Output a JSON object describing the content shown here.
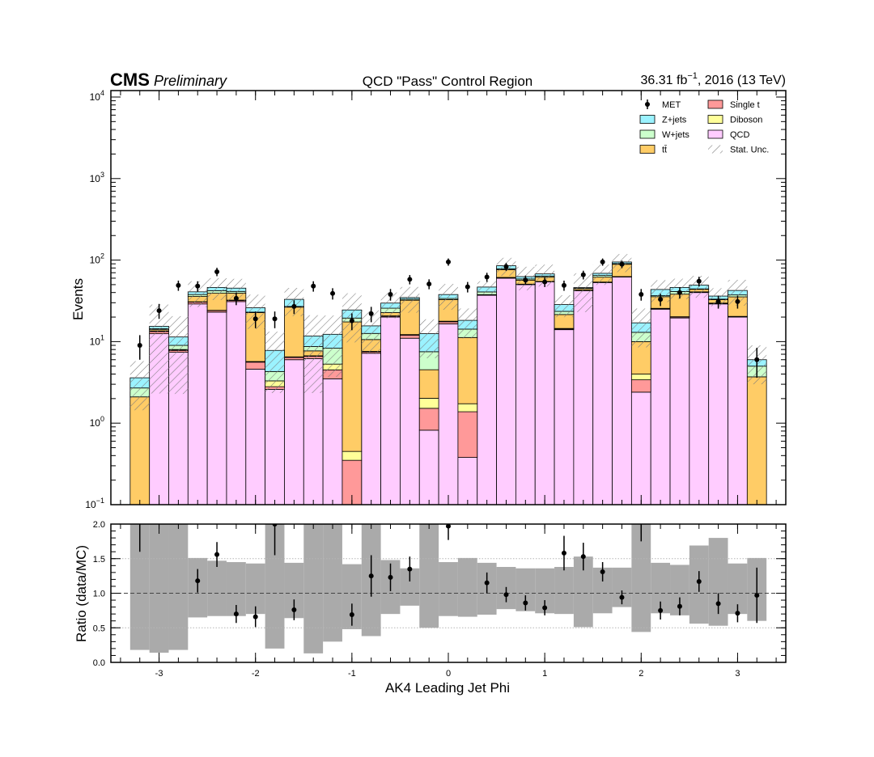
{
  "header": {
    "cms": "CMS",
    "preliminary": "Preliminary",
    "title": "QCD \"Pass\" Control Region",
    "lumi_value": "36.31 fb",
    "lumi_exp": "−1",
    "lumi_rest": ", 2016 (13 TeV)"
  },
  "chart_data": [
    {
      "type": "bar",
      "subtype": "stacked-histogram",
      "xlabel": "AK4 Leading Jet Phi",
      "ylabel": "Events",
      "yscale": "log",
      "xlim": [
        -3.5,
        3.5
      ],
      "ylim": [
        0.1,
        12000
      ],
      "bin_edges": [
        -3.3,
        -3.1,
        -2.9,
        -2.7,
        -2.5,
        -2.3,
        -2.1,
        -1.9,
        -1.7,
        -1.5,
        -1.3,
        -1.1,
        -0.9,
        -0.7,
        -0.5,
        -0.3,
        -0.1,
        0.1,
        0.3,
        0.5,
        0.7,
        0.9,
        1.1,
        1.3,
        1.5,
        1.7,
        1.9,
        2.1,
        2.3,
        2.5,
        2.7,
        2.9,
        3.1,
        3.3
      ],
      "x_ticks": [
        -3,
        -2,
        -1,
        0,
        1,
        2,
        3
      ],
      "x_tick_labels": [
        "-3",
        "-2",
        "-1",
        "0",
        "1",
        "2",
        "3"
      ],
      "y_ticks": [
        {
          "value": 0.1,
          "base": "10",
          "exp": "−1"
        },
        {
          "value": 1,
          "base": "10",
          "exp": "0"
        },
        {
          "value": 10,
          "base": "10",
          "exp": "1"
        },
        {
          "value": 100,
          "base": "10",
          "exp": "2"
        },
        {
          "value": 1000,
          "base": "10",
          "exp": "3"
        },
        {
          "value": 10000,
          "base": "10",
          "exp": "4"
        }
      ],
      "legend_position": "top-right",
      "legend": [
        {
          "label": "MET",
          "kind": "marker"
        },
        {
          "label": "Single t",
          "kind": "fill",
          "color": "#ff9999"
        },
        {
          "label": "Z+jets",
          "kind": "fill",
          "color": "#9bf2ff"
        },
        {
          "label": "Diboson",
          "kind": "fill",
          "color": "#ffff99"
        },
        {
          "label": "W+jets",
          "kind": "fill",
          "color": "#ccffcc"
        },
        {
          "label": "QCD",
          "kind": "fill",
          "color": "#ffccff"
        },
        {
          "label": "tt̄",
          "kind": "fill",
          "color": "#ffcc66"
        },
        {
          "label": "Stat. Unc.",
          "kind": "hatch"
        }
      ],
      "stack_order": [
        "QCD",
        "Single t",
        "Diboson",
        "tt̄",
        "W+jets",
        "Z+jets"
      ],
      "series": [
        {
          "name": "QCD",
          "color": "#ffccff",
          "values": [
            0,
            12.5,
            7.4,
            29,
            23,
            31,
            4.6,
            2.6,
            6,
            6.2,
            3.5,
            0,
            7.2,
            20,
            11,
            0.82,
            16.5,
            0.38,
            37,
            60,
            50,
            54,
            14,
            42,
            53,
            62,
            2.4,
            25,
            19.5,
            40,
            29,
            20,
            0
          ]
        },
        {
          "name": "Single t",
          "color": "#ff9999",
          "values": [
            0,
            0.8,
            0.4,
            1.5,
            1,
            1,
            1,
            0.2,
            0.4,
            0.4,
            1,
            0.35,
            0.3,
            0.5,
            1,
            0.7,
            1,
            1,
            0.5,
            1,
            0.5,
            0.5,
            0.3,
            0.5,
            0.5,
            0.5,
            1,
            0.3,
            0.5,
            0.5,
            0.5,
            0.3,
            0
          ]
        },
        {
          "name": "Diboson",
          "color": "#ffff99",
          "values": [
            0,
            0.2,
            0.1,
            0.3,
            0.2,
            0.3,
            0.1,
            0.5,
            0.1,
            0.1,
            0.8,
            0.1,
            0.1,
            0.2,
            0.2,
            0.5,
            0.3,
            0.35,
            0.2,
            0.3,
            0.2,
            0.2,
            0.2,
            0.2,
            0.3,
            0.3,
            0.6,
            0.3,
            0.2,
            0.3,
            0.2,
            0.1,
            0
          ]
        },
        {
          "name": "tt̄",
          "color": "#ffcc66",
          "values": [
            2.1,
            0.5,
            0.1,
            5,
            15,
            7,
            17,
            0,
            20,
            1,
            0,
            17,
            3,
            2,
            20,
            2.5,
            15,
            9.5,
            0,
            15,
            6,
            7,
            7,
            2,
            8,
            26,
            6,
            10,
            18,
            3,
            3,
            15,
            3.7
          ]
        },
        {
          "name": "W+jets",
          "color": "#ccffcc",
          "values": [
            0.6,
            0.4,
            1,
            2,
            3,
            2,
            0.3,
            1,
            0.5,
            1,
            3,
            2,
            2,
            3,
            1,
            3,
            1,
            3,
            3,
            2,
            2,
            2,
            2,
            0.3,
            3,
            2,
            3,
            1,
            3,
            0.5,
            0.5,
            2,
            1.3
          ]
        },
        {
          "name": "Z+jets",
          "color": "#9bf2ff",
          "values": [
            0.9,
            1,
            2.4,
            3,
            4,
            4,
            3,
            3.5,
            6,
            3,
            4,
            5,
            3,
            4,
            1.5,
            5,
            4,
            4,
            6,
            7,
            4,
            4,
            5,
            1,
            4,
            4,
            4,
            7,
            5,
            5,
            3,
            5,
            1
          ]
        }
      ],
      "stat_unc_rel": [
        0.6,
        0.85,
        0.8,
        0.35,
        0.3,
        0.3,
        0.45,
        0.7,
        0.38,
        0.8,
        0.7,
        0.6,
        0.55,
        0.35,
        0.35,
        0.5,
        0.35,
        0.4,
        0.18,
        0.25,
        0.32,
        0.3,
        0.3,
        0.5,
        0.28,
        0.25,
        0.5,
        0.3,
        0.28,
        0.3,
        0.25,
        0.35,
        0.5
      ],
      "data": {
        "name": "MET",
        "values": [
          9,
          24,
          49,
          48,
          72,
          34,
          19,
          19,
          27,
          48,
          39,
          18,
          22,
          38,
          58,
          51,
          95,
          47,
          62,
          83,
          57,
          54,
          49,
          66,
          95,
          89,
          38,
          33,
          40,
          55,
          31,
          31,
          6
        ],
        "errors": [
          3,
          5,
          7,
          7,
          8.5,
          6,
          4.4,
          4.4,
          5.2,
          7,
          6.2,
          4.2,
          4.7,
          6.2,
          7.6,
          7.1,
          9.7,
          6.9,
          7.9,
          9.1,
          7.5,
          7.3,
          7,
          8.1,
          9.7,
          9.4,
          6.2,
          5.7,
          6.3,
          7.4,
          5.6,
          5.6,
          2.4
        ]
      }
    },
    {
      "type": "scatter",
      "subtype": "ratio-panel",
      "xlabel": "AK4 Leading Jet Phi",
      "ylabel": "Ratio (data/MC)",
      "xlim": [
        -3.5,
        3.5
      ],
      "ylim": [
        0.0,
        2.0
      ],
      "y_ticks": [
        0.0,
        0.5,
        1.0,
        1.5,
        2.0
      ],
      "y_tick_labels": [
        "0.0",
        "0.5",
        "1.0",
        "1.5",
        "2.0"
      ],
      "x_ticks": [
        -3,
        -2,
        -1,
        0,
        1,
        2,
        3
      ],
      "x_tick_labels": [
        "-3",
        "-2",
        "-1",
        "0",
        "1",
        "2",
        "3"
      ],
      "reference_line": 1.0,
      "gridlines": [
        0.5,
        1.5
      ],
      "ratio": [
        2.35,
        2.6,
        2.8,
        1.18,
        1.56,
        0.7,
        0.66,
        2.0,
        0.76,
        2.6,
        2.6,
        0.69,
        1.25,
        1.23,
        1.35,
        3.0,
        1.97,
        2.6,
        1.15,
        0.98,
        0.86,
        0.79,
        1.58,
        1.53,
        1.31,
        0.94,
        2.1,
        0.75,
        0.81,
        1.17,
        0.85,
        0.71,
        0.97
      ],
      "ratio_err": [
        0.75,
        0.5,
        0.3,
        0.17,
        0.18,
        0.13,
        0.15,
        0.45,
        0.15,
        0.4,
        0.4,
        0.16,
        0.3,
        0.2,
        0.18,
        0.45,
        0.2,
        0.35,
        0.15,
        0.11,
        0.11,
        0.11,
        0.25,
        0.2,
        0.14,
        0.1,
        0.35,
        0.13,
        0.13,
        0.15,
        0.15,
        0.13,
        0.4
      ],
      "unc_band": [
        [
          0.18,
          2.2
        ],
        [
          0.14,
          2.2
        ],
        [
          0.18,
          2.2
        ],
        [
          0.65,
          1.51
        ],
        [
          0.67,
          1.47
        ],
        [
          0.67,
          1.45
        ],
        [
          0.7,
          1.43
        ],
        [
          0.2,
          2.2
        ],
        [
          0.64,
          1.44
        ],
        [
          0.13,
          2.2
        ],
        [
          0.3,
          2.2
        ],
        [
          0.48,
          1.42
        ],
        [
          0.38,
          2.2
        ],
        [
          0.7,
          1.48
        ],
        [
          0.82,
          1.36
        ],
        [
          0.5,
          2.2
        ],
        [
          0.67,
          1.45
        ],
        [
          0.66,
          1.51
        ],
        [
          0.69,
          1.44
        ],
        [
          0.77,
          1.38
        ],
        [
          0.74,
          1.36
        ],
        [
          0.71,
          1.36
        ],
        [
          0.7,
          1.38
        ],
        [
          0.51,
          1.53
        ],
        [
          0.71,
          1.37
        ],
        [
          0.8,
          1.37
        ],
        [
          0.44,
          2.2
        ],
        [
          0.71,
          1.44
        ],
        [
          0.68,
          1.41
        ],
        [
          0.56,
          1.69
        ],
        [
          0.53,
          1.8
        ],
        [
          0.7,
          1.43
        ],
        [
          0.6,
          1.51
        ]
      ]
    }
  ]
}
